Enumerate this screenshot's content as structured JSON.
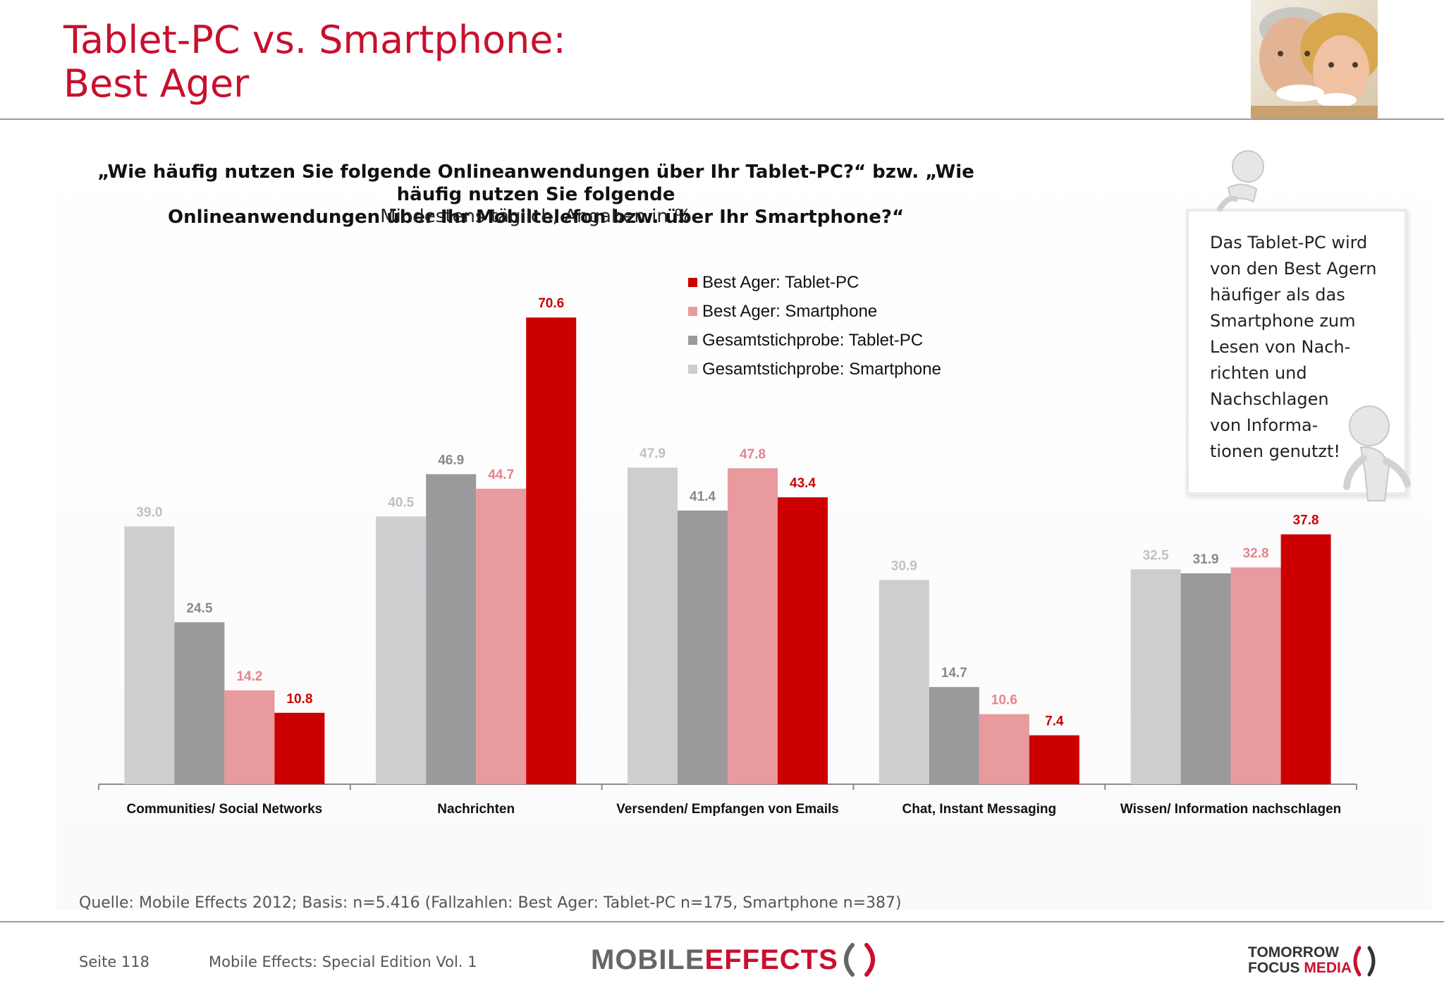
{
  "title": {
    "line1": "Tablet-PC vs. Smartphone:",
    "line2": "Best Ager"
  },
  "question": {
    "line1": "„Wie häufig nutzen Sie folgende Onlineanwendungen über Ihr Tablet-PC?“ bzw. „Wie häufig nutzen Sie folgende",
    "line2": "Onlineanwendungen über Ihr Mobiltelefon bzw. über Ihr Smartphone?“"
  },
  "subtitle": "Mindestens täglich, Angaben in %",
  "note": {
    "lines": [
      "Das Tablet-PC wird",
      "von den Best Agern",
      "häufiger als das",
      "Smartphone zum",
      "Lesen von Nach-",
      "richten und",
      "Nachschlagen",
      "von Informa-",
      "tionen genutzt!"
    ]
  },
  "source": "Quelle: Mobile Effects 2012; Basis: n=5.416 (Fallzahlen: Best Ager: Tablet-PC n=175, Smartphone n=387)",
  "footer": {
    "page": "Seite 118",
    "edition": "Mobile Effects: Special Edition Vol. 1",
    "logo_mobile_part1": "MOBILE",
    "logo_mobile_part2": "EFFECTS",
    "logo_tf_line1": "TOMORROW",
    "logo_tf_line2a": "FOCUS ",
    "logo_tf_line2b": "MEDIA"
  },
  "colors": {
    "best_ager_tablet": "#cc0000",
    "best_ager_smartphone": "#e89a9e",
    "gesamt_tablet": "#9b999c",
    "gesamt_smartphone": "#cfcdd0",
    "title": "#c8102e"
  },
  "chart_data": {
    "type": "bar",
    "categories": [
      "Communities/ Social Networks",
      "Nachrichten",
      "Versenden/ Empfangen von Emails",
      "Chat, Instant Messaging",
      "Wissen/ Information nachschlagen"
    ],
    "series": [
      {
        "name": "Gesamtstichprobe: Smartphone",
        "values": [
          39.0,
          40.5,
          47.9,
          30.9,
          32.5
        ],
        "color": "#cfcdd0"
      },
      {
        "name": "Gesamtstichprobe: Tablet-PC",
        "values": [
          24.5,
          46.9,
          41.4,
          14.7,
          31.9
        ],
        "color": "#9b999c"
      },
      {
        "name": "Best Ager: Smartphone",
        "values": [
          14.2,
          44.7,
          47.8,
          10.6,
          32.8
        ],
        "color": "#e89a9e"
      },
      {
        "name": "Best Ager: Tablet-PC",
        "values": [
          10.8,
          70.6,
          43.4,
          7.4,
          37.8
        ],
        "color": "#cc0000"
      }
    ],
    "legend": [
      "Best Ager: Tablet-PC",
      "Best Ager: Smartphone",
      "Gesamtstichprobe: Tablet-PC",
      "Gesamtstichprobe: Smartphone"
    ],
    "legend_position": "top-center",
    "ylim": [
      0,
      75
    ],
    "grid": false,
    "data_labels": true
  }
}
